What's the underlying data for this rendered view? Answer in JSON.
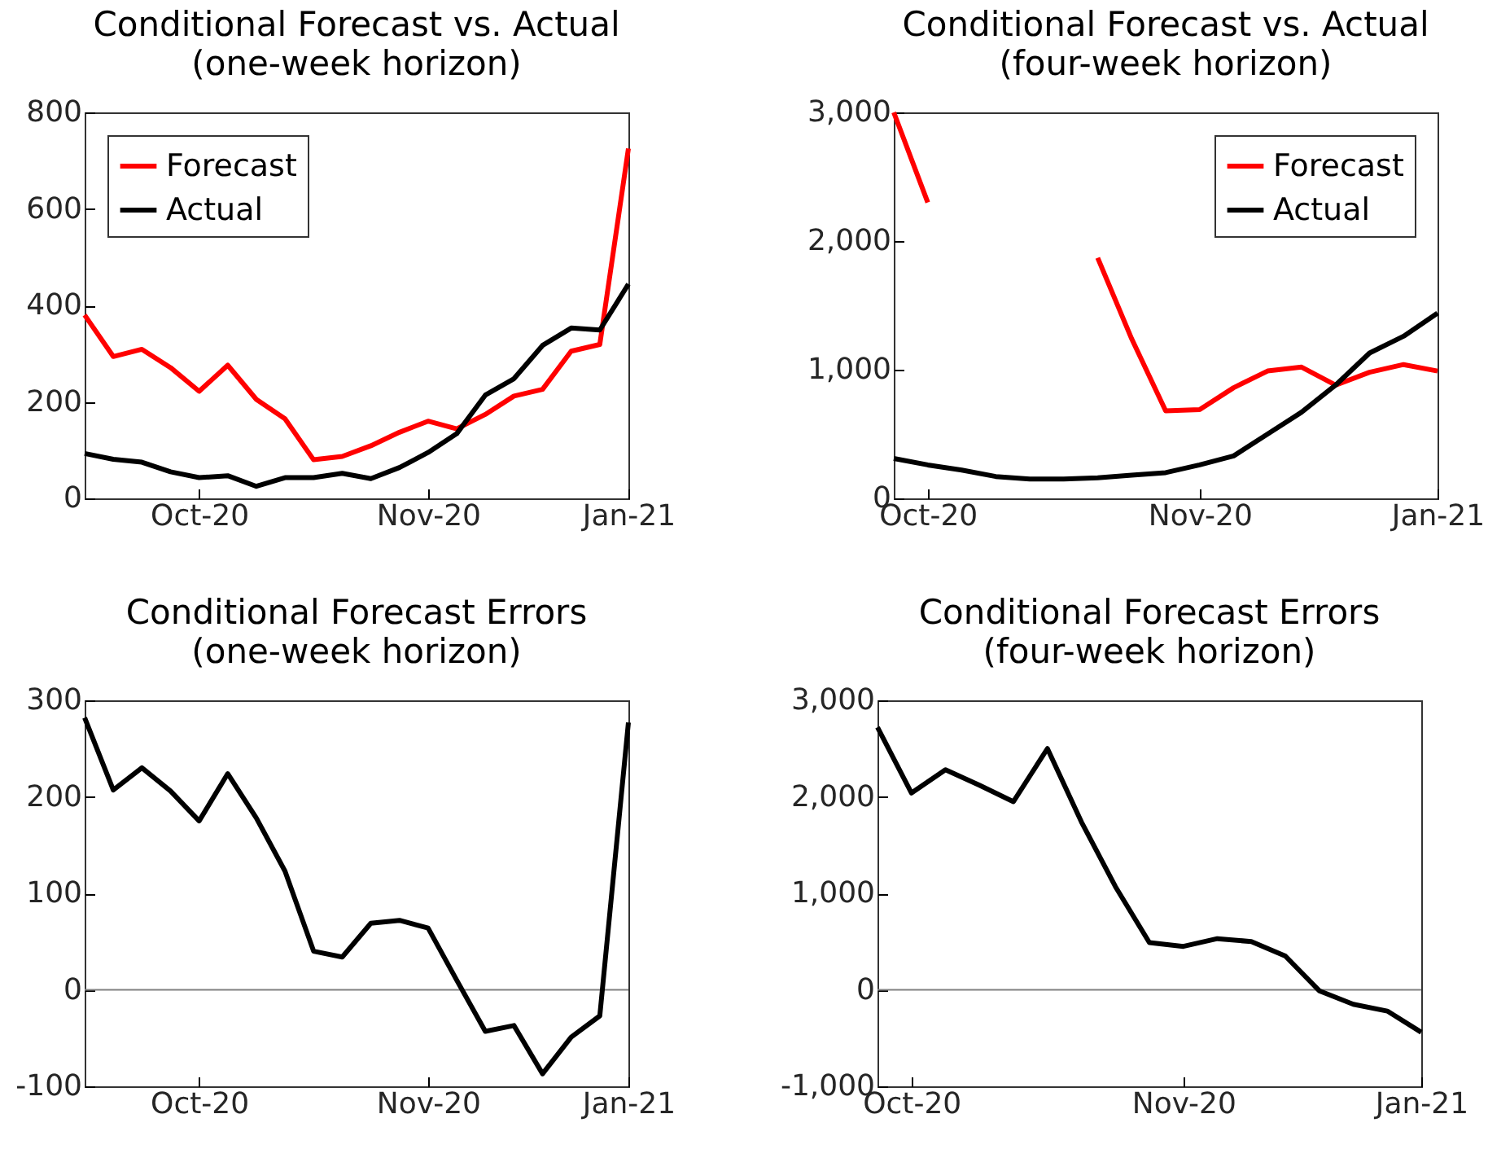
{
  "chart_data": [
    {
      "type": "line",
      "title": "Conditional Forecast vs. Actual",
      "subtitle": "(one-week horizon)",
      "categories": [
        null,
        null,
        null,
        null,
        "Oct-20",
        null,
        null,
        null,
        null,
        null,
        null,
        null,
        "Nov-20",
        null,
        null,
        null,
        null,
        null,
        null,
        "Jan-21"
      ],
      "series": [
        {
          "name": "Forecast",
          "color": "#ff0000",
          "values": [
            380,
            294,
            309,
            271,
            222,
            276,
            205,
            165,
            80,
            87,
            109,
            137,
            160,
            144,
            174,
            212,
            226,
            305,
            319,
            725
          ]
        },
        {
          "name": "Actual",
          "color": "#000000",
          "values": [
            93,
            81,
            75,
            55,
            43,
            47,
            25,
            43,
            43,
            52,
            41,
            64,
            95,
            134,
            214,
            248,
            317,
            353,
            349,
            444
          ]
        }
      ],
      "ylim": [
        0,
        800
      ],
      "yticks": [
        0,
        200,
        400,
        600,
        800
      ],
      "legend": "top left"
    },
    {
      "type": "line",
      "title": "Conditional Forecast vs. Actual",
      "subtitle": "(four-week horizon)",
      "categories": [
        null,
        "Oct-20",
        null,
        null,
        null,
        null,
        null,
        null,
        null,
        "Nov-20",
        null,
        null,
        null,
        null,
        null,
        null,
        "Jan-21"
      ],
      "series": [
        {
          "name": "Forecast",
          "color": "#ff0000",
          "values": [
            3000,
            2300,
            null,
            null,
            null,
            null,
            1870,
            1240,
            680,
            690,
            860,
            990,
            1020,
            880,
            980,
            1040,
            990
          ]
        },
        {
          "name": "Actual",
          "color": "#000000",
          "values": [
            310,
            260,
            220,
            170,
            150,
            150,
            160,
            180,
            200,
            260,
            330,
            500,
            670,
            880,
            1130,
            1260,
            1440
          ]
        }
      ],
      "ylim": [
        0,
        3000
      ],
      "yticks": [
        0,
        {
          "value": 1000,
          "label": "1,000"
        },
        {
          "value": 2000,
          "label": "2,000"
        },
        {
          "value": 3000,
          "label": "3,000"
        }
      ],
      "legend": "top right"
    },
    {
      "type": "line",
      "title": "Conditional Forecast Errors",
      "subtitle": "(one-week horizon)",
      "categories": [
        null,
        null,
        null,
        null,
        "Oct-20",
        null,
        null,
        null,
        null,
        null,
        null,
        null,
        "Nov-20",
        null,
        null,
        null,
        null,
        null,
        null,
        "Jan-21"
      ],
      "series": [
        {
          "color": "#000000",
          "values": [
            282,
            207,
            230,
            206,
            175,
            224,
            178,
            123,
            40,
            34,
            69,
            72,
            64,
            10,
            -43,
            -37,
            -87,
            -49,
            -27,
            277
          ]
        }
      ],
      "ylim": [
        -100,
        300
      ],
      "yticks": [
        -100,
        0,
        100,
        200,
        300
      ],
      "ref_lines": [
        {
          "axis": "y",
          "value": 0,
          "color": "#808080"
        }
      ]
    },
    {
      "type": "line",
      "title": "Conditional Forecast Errors",
      "subtitle": "(four-week horizon)",
      "categories": [
        null,
        "Oct-20",
        null,
        null,
        null,
        null,
        null,
        null,
        null,
        "Nov-20",
        null,
        null,
        null,
        null,
        null,
        null,
        "Jan-21"
      ],
      "series": [
        {
          "color": "#000000",
          "values": [
            2720,
            2040,
            2280,
            2120,
            1950,
            2500,
            1740,
            1070,
            490,
            450,
            530,
            500,
            350,
            -10,
            -150,
            -220,
            -440
          ]
        }
      ],
      "ylim": [
        -1000,
        3000
      ],
      "yticks": [
        {
          "value": -1000,
          "label": "-1,000"
        },
        0,
        {
          "value": 1000,
          "label": "1,000"
        },
        {
          "value": 2000,
          "label": "2,000"
        },
        {
          "value": 3000,
          "label": "3,000"
        }
      ],
      "ref_lines": [
        {
          "axis": "y",
          "value": 0,
          "color": "#808080"
        }
      ]
    }
  ]
}
